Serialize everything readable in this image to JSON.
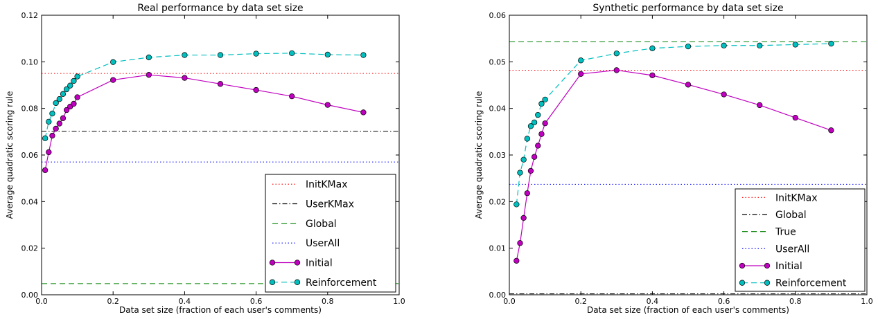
{
  "chart_data": [
    {
      "type": "line",
      "title": "Real performance by data set size",
      "xlabel": "Data set size (fraction of each user's comments)",
      "ylabel": "Average quadratic scoring rule",
      "xlim": [
        0,
        1.0
      ],
      "ylim": [
        0,
        0.12
      ],
      "x_ticks": [
        "0.0",
        "0.2",
        "0.4",
        "0.6",
        "0.8",
        "1.0"
      ],
      "y_ticks": [
        "0.00",
        "0.02",
        "0.04",
        "0.06",
        "0.08",
        "0.10",
        "0.12"
      ],
      "grid": false,
      "legend_position": "lower-right",
      "reference_lines": [
        {
          "name": "InitKMax",
          "value": 0.095,
          "color": "#ff0000",
          "style": "dotted"
        },
        {
          "name": "UserKMax",
          "value": 0.0702,
          "color": "#000000",
          "style": "dashdot"
        },
        {
          "name": "Global",
          "value": 0.0048,
          "color": "#008000",
          "style": "dashed"
        },
        {
          "name": "UserAll",
          "value": 0.057,
          "color": "#0000ff",
          "style": "dotted"
        }
      ],
      "series": [
        {
          "name": "Initial",
          "color": "#bf00bf",
          "style": "solid",
          "x": [
            0.01,
            0.02,
            0.03,
            0.04,
            0.05,
            0.06,
            0.07,
            0.08,
            0.09,
            0.1,
            0.2,
            0.3,
            0.4,
            0.5,
            0.6,
            0.7,
            0.8,
            0.9
          ],
          "y": [
            0.0535,
            0.0612,
            0.0683,
            0.0713,
            0.0735,
            0.0758,
            0.0793,
            0.0808,
            0.082,
            0.0848,
            0.0922,
            0.0944,
            0.0931,
            0.0905,
            0.0879,
            0.0852,
            0.0815,
            0.0783
          ]
        },
        {
          "name": "Reinforcement",
          "color": "#00bfbf",
          "style": "dashed",
          "x": [
            0.01,
            0.02,
            0.03,
            0.04,
            0.05,
            0.06,
            0.07,
            0.08,
            0.09,
            0.1,
            0.2,
            0.3,
            0.4,
            0.5,
            0.6,
            0.7,
            0.8,
            0.9
          ],
          "y": [
            0.0672,
            0.0743,
            0.0778,
            0.0823,
            0.084,
            0.0862,
            0.0882,
            0.0898,
            0.0918,
            0.0937,
            0.0999,
            0.1019,
            0.1029,
            0.1029,
            0.1035,
            0.1037,
            0.1031,
            0.1029
          ]
        }
      ],
      "legend": [
        "InitKMax",
        "UserKMax",
        "Global",
        "UserAll",
        "Initial",
        "Reinforcement"
      ]
    },
    {
      "type": "line",
      "title": "Synthetic performance by data set size",
      "xlabel": "Data set size (fraction of each user's comments)",
      "ylabel": "Average quadratic scoring rule",
      "xlim": [
        0,
        1.0
      ],
      "ylim": [
        0,
        0.06
      ],
      "x_ticks": [
        "0.0",
        "0.2",
        "0.4",
        "0.6",
        "0.8",
        "1.0"
      ],
      "y_ticks": [
        "0.00",
        "0.01",
        "0.02",
        "0.03",
        "0.04",
        "0.05",
        "0.06"
      ],
      "grid": false,
      "legend_position": "lower-right",
      "reference_lines": [
        {
          "name": "InitKMax",
          "value": 0.0482,
          "color": "#ff0000",
          "style": "dotted"
        },
        {
          "name": "Global",
          "value": 0.0002,
          "color": "#000000",
          "style": "dashdot"
        },
        {
          "name": "True",
          "value": 0.0543,
          "color": "#008000",
          "style": "dashed"
        },
        {
          "name": "UserAll",
          "value": 0.0237,
          "color": "#0000ff",
          "style": "dotted"
        }
      ],
      "series": [
        {
          "name": "Initial",
          "color": "#bf00bf",
          "style": "solid",
          "x": [
            0.02,
            0.03,
            0.04,
            0.05,
            0.06,
            0.07,
            0.08,
            0.09,
            0.1,
            0.2,
            0.3,
            0.4,
            0.5,
            0.6,
            0.7,
            0.8,
            0.9
          ],
          "y": [
            0.0073,
            0.0111,
            0.0165,
            0.0218,
            0.0266,
            0.0296,
            0.032,
            0.0345,
            0.0368,
            0.0474,
            0.0482,
            0.0471,
            0.0451,
            0.043,
            0.0407,
            0.038,
            0.0353
          ]
        },
        {
          "name": "Reinforcement",
          "color": "#00bfbf",
          "style": "dashed",
          "x": [
            0.02,
            0.03,
            0.04,
            0.05,
            0.06,
            0.07,
            0.08,
            0.09,
            0.1,
            0.2,
            0.3,
            0.4,
            0.5,
            0.6,
            0.7,
            0.8,
            0.9
          ],
          "y": [
            0.0194,
            0.0262,
            0.029,
            0.0335,
            0.0362,
            0.037,
            0.0386,
            0.041,
            0.0419,
            0.0503,
            0.0518,
            0.0529,
            0.0533,
            0.0535,
            0.0535,
            0.0537,
            0.0539
          ]
        }
      ],
      "legend": [
        "InitKMax",
        "Global",
        "True",
        "UserAll",
        "Initial",
        "Reinforcement"
      ]
    }
  ]
}
